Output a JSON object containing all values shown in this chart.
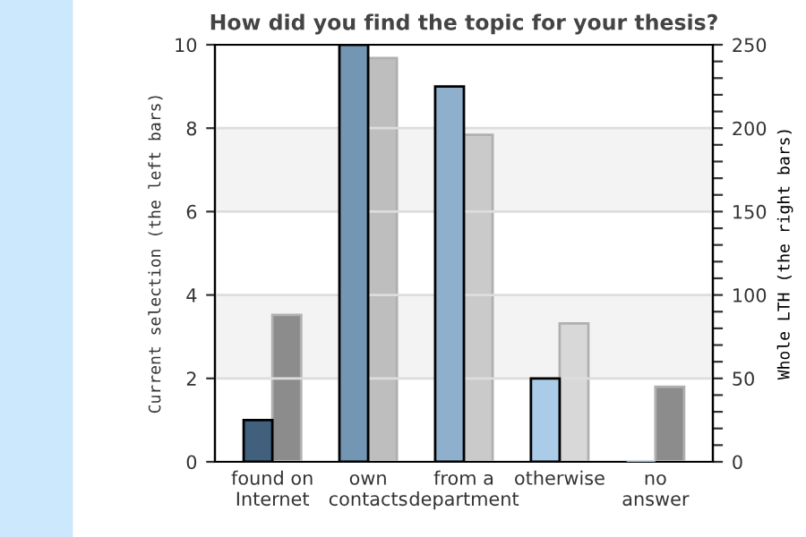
{
  "chart_data": {
    "type": "bar",
    "title": "How did you find the topic for your thesis?",
    "ylabel": "Current selection (the left bars)",
    "y2label": "Whole LTH (the right bars)",
    "categories": [
      "found on\nInternet",
      "own\ncontacts",
      "from a\ndepartment",
      "otherwise",
      "no\nanswer"
    ],
    "series": [
      {
        "colors": [
          "#41607e",
          "#7396b4",
          "#8fb0cc",
          "#aacce8",
          "#aacce8"
        ],
        "values": [
          1,
          10,
          9,
          2,
          0
        ],
        "axis": "y"
      },
      {
        "colors": [
          "#8c8c8c",
          "#bebebe",
          "#cacaca",
          "#d8d8d8",
          "#8c8c8c"
        ],
        "values": [
          88,
          242,
          196,
          83,
          45
        ],
        "axis": "y2"
      }
    ],
    "ylim": [
      0,
      10
    ],
    "yticks": [
      0,
      2,
      4,
      6,
      8,
      10
    ],
    "y2lim": [
      0,
      250
    ],
    "y2ticks": [
      0,
      {
        "value": 10,
        "label": null
      },
      {
        "value": 20,
        "label": null
      },
      {
        "value": 30,
        "label": null
      },
      {
        "value": 40,
        "label": null
      },
      50,
      {
        "value": 60,
        "label": null
      },
      {
        "value": 70,
        "label": null
      },
      {
        "value": 80,
        "label": null
      },
      {
        "value": 90,
        "label": null
      },
      100,
      {
        "value": 110,
        "label": null
      },
      {
        "value": 120,
        "label": null
      },
      {
        "value": 130,
        "label": null
      },
      {
        "value": 140,
        "label": null
      },
      150,
      {
        "value": 160,
        "label": null
      },
      {
        "value": 170,
        "label": null
      },
      {
        "value": 180,
        "label": null
      },
      {
        "value": 190,
        "label": null
      },
      200,
      {
        "value": 210,
        "label": null
      },
      {
        "value": 220,
        "label": null
      },
      {
        "value": 230,
        "label": null
      },
      {
        "value": 240,
        "label": null
      },
      250
    ],
    "bands": [
      {
        "axis": "y",
        "from": 2,
        "to": 4,
        "color": "#f3f3f3"
      },
      {
        "axis": "y",
        "from": 6,
        "to": 8,
        "color": "#f3f3f3"
      }
    ],
    "grid": "y",
    "legend": false
  }
}
